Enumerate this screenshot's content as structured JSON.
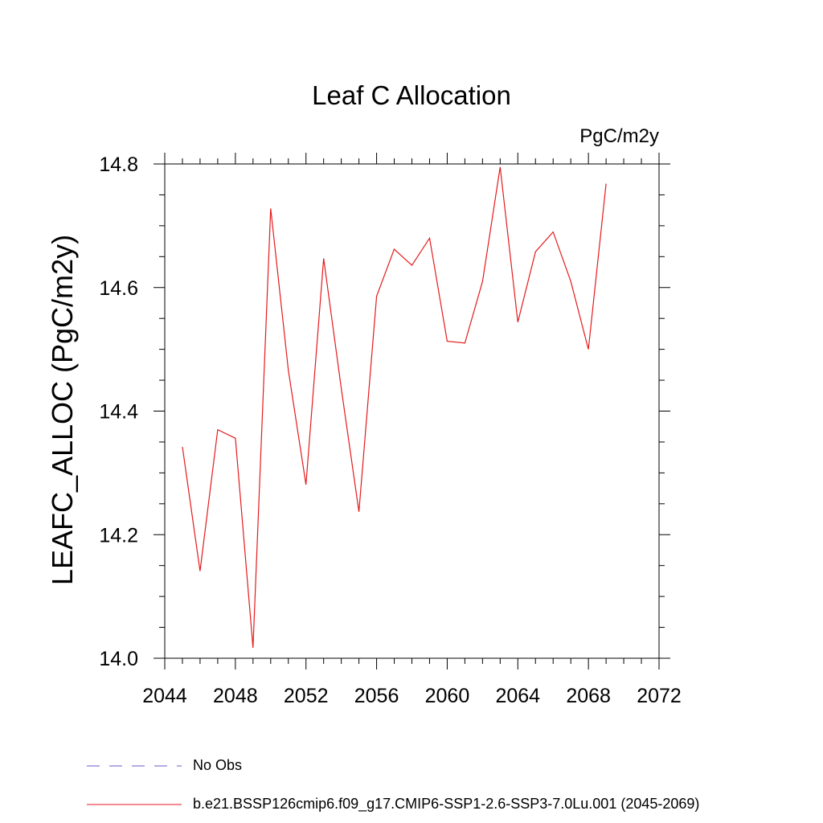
{
  "chart_data": {
    "type": "line",
    "title": "Leaf C Allocation",
    "units_label": "PgC/m2y",
    "ylabel": "LEAFC_ALLOC  (PgC/m2y)",
    "xlabel": "",
    "xlim": [
      2044,
      2072
    ],
    "ylim": [
      14.0,
      14.8
    ],
    "x_ticks": [
      "2044",
      "2048",
      "2052",
      "2056",
      "2060",
      "2064",
      "2068",
      "2072"
    ],
    "y_ticks": [
      "14.0",
      "14.2",
      "14.4",
      "14.6",
      "14.8"
    ],
    "grid": false,
    "legend_position": "bottom",
    "series": [
      {
        "name": "b.e21.BSSP126cmip6.f09_g17.CMIP6-SSP1-2.6-SSP3-7.0Lu.001 (2045-2069)",
        "color": "#e41a1c",
        "style": "solid",
        "x": [
          2045,
          2046,
          2047,
          2048,
          2049,
          2050,
          2051,
          2052,
          2053,
          2054,
          2055,
          2056,
          2057,
          2058,
          2059,
          2060,
          2061,
          2062,
          2063,
          2064,
          2065,
          2066,
          2067,
          2068,
          2069
        ],
        "values": [
          14.342,
          14.141,
          14.37,
          14.356,
          14.017,
          14.728,
          14.466,
          14.281,
          14.647,
          14.437,
          14.237,
          14.586,
          14.662,
          14.636,
          14.68,
          14.513,
          14.51,
          14.61,
          14.795,
          14.544,
          14.658,
          14.69,
          14.61,
          14.5,
          14.768
        ]
      }
    ],
    "legend": [
      {
        "label": "No Obs",
        "color": "#6a5acd",
        "style": "dashed"
      },
      {
        "label": "b.e21.BSSP126cmip6.f09_g17.CMIP6-SSP1-2.6-SSP3-7.0Lu.001 (2045-2069)",
        "color": "#e41a1c",
        "style": "solid"
      }
    ]
  }
}
